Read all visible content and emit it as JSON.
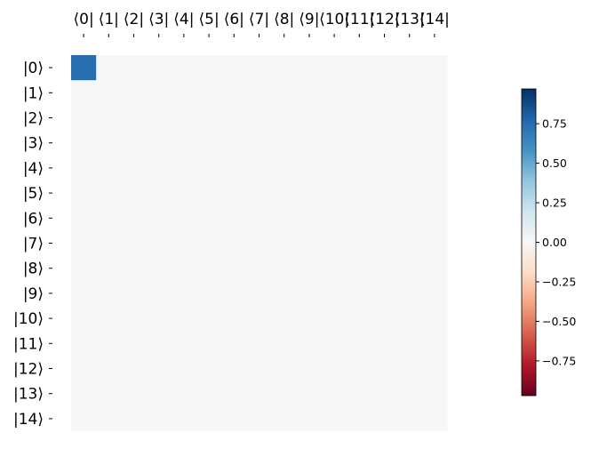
{
  "chart_data": {
    "type": "heatmap",
    "title": "",
    "xlabel": "",
    "ylabel": "",
    "x_tick_labels": [
      "⟨0|",
      "⟨1|",
      "⟨2|",
      "⟨3|",
      "⟨4|",
      "⟨5|",
      "⟨6|",
      "⟨7|",
      "⟨8|",
      "⟨9|",
      "⟨10|",
      "⟨11|",
      "⟨12|",
      "⟨13|",
      "⟨14|"
    ],
    "y_tick_labels": [
      "|0⟩",
      "|1⟩",
      "|2⟩",
      "|3⟩",
      "|4⟩",
      "|5⟩",
      "|6⟩",
      "|7⟩",
      "|8⟩",
      "|9⟩",
      "|10⟩",
      "|11⟩",
      "|12⟩",
      "|13⟩",
      "|14⟩"
    ],
    "x_ticks_position": "top",
    "nonzero_values": [
      {
        "row": 0,
        "col": 0,
        "value": 0.74
      }
    ],
    "default_value": 0.0,
    "colormap": "RdBu",
    "vmin": -0.97,
    "vmax": 0.97,
    "colorbar": {
      "ticks": [
        0.75,
        0.5,
        0.25,
        0.0,
        -0.25,
        -0.5,
        -0.75
      ],
      "tick_labels": [
        "0.75",
        "0.50",
        "0.25",
        "0.00",
        "−0.25",
        "−0.50",
        "−0.75"
      ],
      "position": "right"
    },
    "grid": false
  }
}
